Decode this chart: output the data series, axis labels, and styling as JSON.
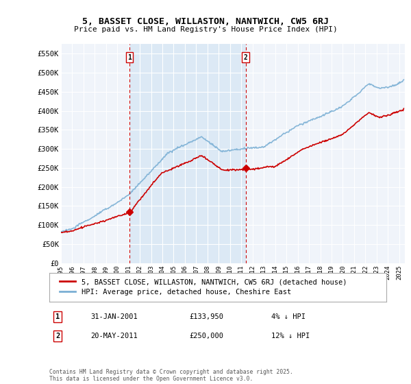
{
  "title": "5, BASSET CLOSE, WILLASTON, NANTWICH, CW5 6RJ",
  "subtitle": "Price paid vs. HM Land Registry's House Price Index (HPI)",
  "ylabel_ticks": [
    "£0",
    "£50K",
    "£100K",
    "£150K",
    "£200K",
    "£250K",
    "£300K",
    "£350K",
    "£400K",
    "£450K",
    "£500K",
    "£550K"
  ],
  "ytick_vals": [
    0,
    50000,
    100000,
    150000,
    200000,
    250000,
    300000,
    350000,
    400000,
    450000,
    500000,
    550000
  ],
  "ylim": [
    0,
    575000
  ],
  "xlim_start": 1995.0,
  "xlim_end": 2025.5,
  "sale1_x": 2001.08,
  "sale1_y": 133950,
  "sale1_label": "1",
  "sale2_x": 2011.38,
  "sale2_y": 250000,
  "sale2_label": "2",
  "vline1_x": 2001.08,
  "vline2_x": 2011.38,
  "legend_line1": "5, BASSET CLOSE, WILLASTON, NANTWICH, CW5 6RJ (detached house)",
  "legend_line2": "HPI: Average price, detached house, Cheshire East",
  "note1_label": "1",
  "note1_date": "31-JAN-2001",
  "note1_price": "£133,950",
  "note1_hpi": "4% ↓ HPI",
  "note2_label": "2",
  "note2_date": "20-MAY-2011",
  "note2_price": "£250,000",
  "note2_hpi": "12% ↓ HPI",
  "footer": "Contains HM Land Registry data © Crown copyright and database right 2025.\nThis data is licensed under the Open Government Licence v3.0.",
  "house_color": "#cc0000",
  "hpi_color": "#7aafd4",
  "shade_color": "#dce9f5",
  "background_color": "#ffffff",
  "plot_bg": "#f0f4fa",
  "grid_color": "#ffffff"
}
